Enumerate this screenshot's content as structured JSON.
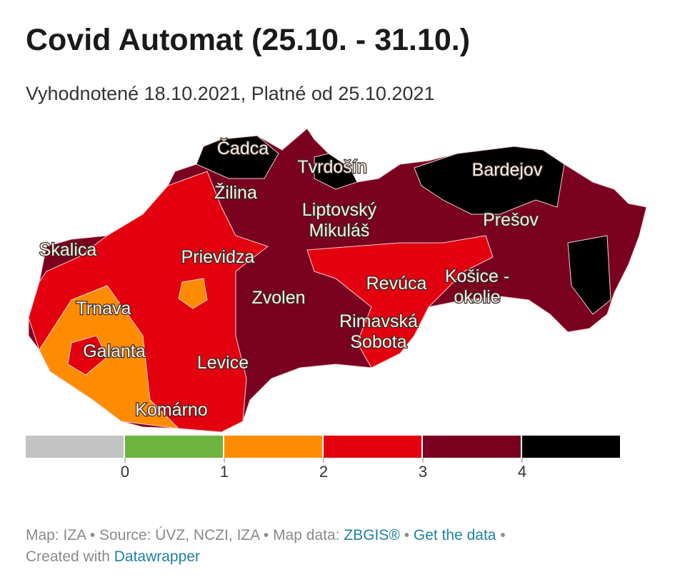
{
  "header": {
    "title": "Covid Automat (25.10. - 31.10.)",
    "subtitle": "Vyhodnotené 18.10.2021, Platné od 25.10.2021"
  },
  "map": {
    "labels": [
      [
        "Čadca"
      ],
      [
        "Tvrdošín"
      ],
      [
        "Žilina"
      ],
      [
        "Liptovský",
        "Mikuláš"
      ],
      [
        "Bardejov"
      ],
      [
        "Prešov"
      ],
      [
        "Skalica"
      ],
      [
        "Prievidza"
      ],
      [
        "Revúca"
      ],
      [
        "Košice -",
        "okolie"
      ],
      [
        "Zvolen"
      ],
      [
        "Trnava"
      ],
      [
        "Rimavská",
        "Sobota"
      ],
      [
        "Galanta"
      ],
      [
        "Levice"
      ],
      [
        "Komárno"
      ]
    ]
  },
  "legend": {
    "colors": [
      "#c3c3c3",
      "#6db33f",
      "#ff8c00",
      "#e3000f",
      "#7a0020",
      "#000000"
    ],
    "ticks": [
      0,
      1,
      2,
      3,
      4
    ]
  },
  "footer": {
    "text": "Map: IZA • Source: ÚVZ, NCZI, IZA • Map data:",
    "sep": "•",
    "links": [
      "ZBGIS®",
      "Get the data",
      "Datawrapper"
    ],
    "created": "Created with"
  }
}
